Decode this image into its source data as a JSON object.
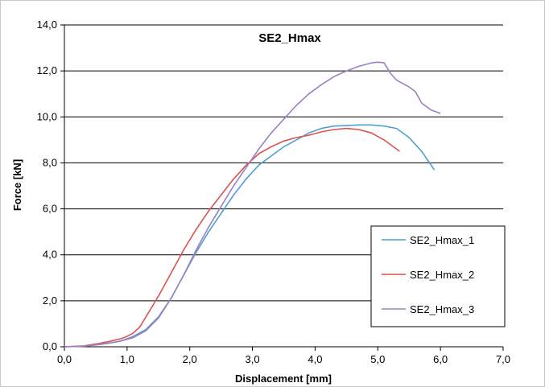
{
  "chart_data": {
    "type": "line",
    "title": "SE2_Hmax",
    "xlabel": "Displacement [mm]",
    "ylabel": "Force [kN]",
    "xlim": [
      0,
      7
    ],
    "ylim": [
      0,
      14
    ],
    "x_ticks": [
      "0,0",
      "1,0",
      "2,0",
      "3,0",
      "4,0",
      "5,0",
      "6,0",
      "7,0"
    ],
    "y_ticks": [
      "0,0",
      "2,0",
      "4,0",
      "6,0",
      "8,0",
      "10,0",
      "12,0",
      "14,0"
    ],
    "grid": "horizontal",
    "legend_position": "bottom-right",
    "series": [
      {
        "name": "SE2_Hmax_1",
        "color": "#4f9fd1",
        "points": [
          [
            0,
            0
          ],
          [
            0.3,
            0.03
          ],
          [
            0.5,
            0.08
          ],
          [
            0.7,
            0.15
          ],
          [
            0.9,
            0.25
          ],
          [
            1.1,
            0.45
          ],
          [
            1.3,
            0.75
          ],
          [
            1.5,
            1.3
          ],
          [
            1.7,
            2.1
          ],
          [
            1.9,
            3.1
          ],
          [
            2.1,
            4.1
          ],
          [
            2.3,
            5.0
          ],
          [
            2.5,
            5.8
          ],
          [
            2.7,
            6.6
          ],
          [
            2.9,
            7.3
          ],
          [
            3.1,
            7.9
          ],
          [
            3.3,
            8.3
          ],
          [
            3.5,
            8.7
          ],
          [
            3.7,
            9.0
          ],
          [
            3.9,
            9.3
          ],
          [
            4.1,
            9.5
          ],
          [
            4.3,
            9.6
          ],
          [
            4.5,
            9.62
          ],
          [
            4.7,
            9.65
          ],
          [
            4.9,
            9.65
          ],
          [
            5.1,
            9.6
          ],
          [
            5.3,
            9.5
          ],
          [
            5.5,
            9.1
          ],
          [
            5.7,
            8.5
          ],
          [
            5.9,
            7.7
          ]
        ]
      },
      {
        "name": "SE2_Hmax_2",
        "color": "#d9534f",
        "points": [
          [
            0,
            0
          ],
          [
            0.3,
            0.03
          ],
          [
            0.5,
            0.12
          ],
          [
            0.7,
            0.22
          ],
          [
            0.9,
            0.35
          ],
          [
            1.0,
            0.45
          ],
          [
            1.1,
            0.6
          ],
          [
            1.2,
            0.85
          ],
          [
            1.3,
            1.3
          ],
          [
            1.5,
            2.2
          ],
          [
            1.7,
            3.2
          ],
          [
            1.9,
            4.2
          ],
          [
            2.1,
            5.1
          ],
          [
            2.3,
            5.9
          ],
          [
            2.5,
            6.6
          ],
          [
            2.7,
            7.3
          ],
          [
            2.9,
            7.9
          ],
          [
            3.1,
            8.4
          ],
          [
            3.3,
            8.7
          ],
          [
            3.5,
            8.95
          ],
          [
            3.7,
            9.1
          ],
          [
            3.9,
            9.2
          ],
          [
            4.1,
            9.35
          ],
          [
            4.3,
            9.45
          ],
          [
            4.5,
            9.5
          ],
          [
            4.7,
            9.45
          ],
          [
            4.9,
            9.3
          ],
          [
            5.1,
            9.0
          ],
          [
            5.35,
            8.5
          ]
        ]
      },
      {
        "name": "SE2_Hmax_3",
        "color": "#9b7fc4",
        "points": [
          [
            0,
            0
          ],
          [
            0.3,
            0.02
          ],
          [
            0.5,
            0.08
          ],
          [
            0.7,
            0.15
          ],
          [
            0.9,
            0.25
          ],
          [
            1.1,
            0.4
          ],
          [
            1.3,
            0.7
          ],
          [
            1.5,
            1.25
          ],
          [
            1.7,
            2.1
          ],
          [
            1.9,
            3.1
          ],
          [
            2.1,
            4.2
          ],
          [
            2.3,
            5.2
          ],
          [
            2.5,
            6.1
          ],
          [
            2.7,
            7.0
          ],
          [
            2.9,
            7.8
          ],
          [
            3.1,
            8.6
          ],
          [
            3.3,
            9.3
          ],
          [
            3.5,
            9.9
          ],
          [
            3.7,
            10.5
          ],
          [
            3.9,
            11.0
          ],
          [
            4.1,
            11.4
          ],
          [
            4.3,
            11.75
          ],
          [
            4.5,
            12.0
          ],
          [
            4.7,
            12.2
          ],
          [
            4.9,
            12.35
          ],
          [
            5.0,
            12.38
          ],
          [
            5.1,
            12.35
          ],
          [
            5.2,
            11.9
          ],
          [
            5.3,
            11.6
          ],
          [
            5.5,
            11.3
          ],
          [
            5.6,
            11.1
          ],
          [
            5.7,
            10.6
          ],
          [
            5.85,
            10.3
          ],
          [
            6.0,
            10.15
          ]
        ]
      }
    ]
  }
}
